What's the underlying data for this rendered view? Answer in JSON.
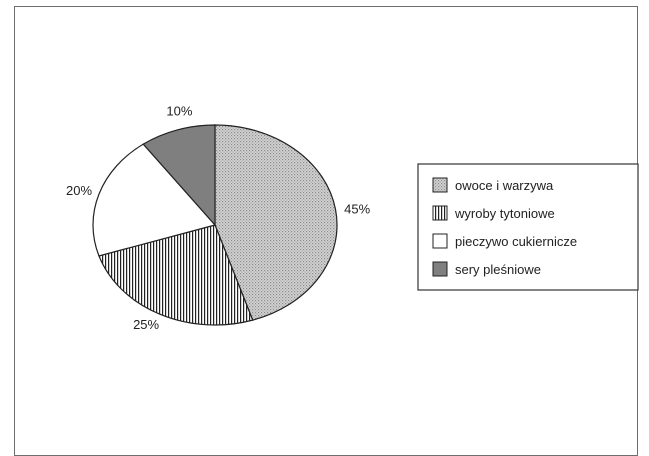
{
  "chart_data": {
    "type": "pie",
    "title": "",
    "slices": [
      {
        "label": "owoce i warzywa",
        "value": 45,
        "value_label": "45%",
        "pattern": "dots",
        "color": "#c8c8c8"
      },
      {
        "label": "wyroby tytoniowe",
        "value": 25,
        "value_label": "25%",
        "pattern": "vertical-stripes",
        "color": "#ffffff"
      },
      {
        "label": "pieczywo cukiernicze",
        "value": 20,
        "value_label": "20%",
        "pattern": "solid",
        "color": "#ffffff"
      },
      {
        "label": "sery pleśniowe",
        "value": 10,
        "value_label": "10%",
        "pattern": "solid",
        "color": "#7f7f7f"
      }
    ],
    "start_angle_deg": 0,
    "direction": "clockwise",
    "legend": {
      "placement": "right"
    }
  }
}
